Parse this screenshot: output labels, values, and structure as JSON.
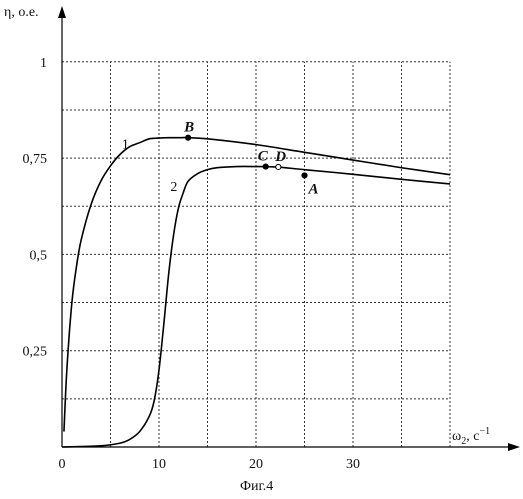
{
  "chart_data": {
    "type": "line",
    "caption": "Фиг.4",
    "ylabel": "η, о.е.",
    "xlabel": "ω",
    "xlabel_sub": "2",
    "xlabel_unit": ", с",
    "xlabel_sup": "−1",
    "xlim": [
      0,
      40
    ],
    "ylim": [
      0,
      1.1
    ],
    "grid": true,
    "x_ticks": [
      {
        "value": 0,
        "label": "0"
      },
      {
        "value": 10,
        "label": "10"
      },
      {
        "value": 20,
        "label": "20"
      },
      {
        "value": 30,
        "label": "30"
      }
    ],
    "y_ticks": [
      {
        "value": 0.25,
        "label": "0,25"
      },
      {
        "value": 0.5,
        "label": "0,5"
      },
      {
        "value": 0.75,
        "label": "0,75"
      },
      {
        "value": 1.0,
        "label": "1"
      }
    ],
    "series": [
      {
        "name": "1",
        "x": [
          0.2,
          0.5,
          1,
          1.5,
          2,
          3,
          4,
          5,
          6,
          7,
          8,
          9,
          10,
          11,
          12,
          13,
          15,
          20,
          25,
          30,
          35,
          40
        ],
        "y": [
          0.04,
          0.2,
          0.37,
          0.47,
          0.54,
          0.63,
          0.69,
          0.73,
          0.76,
          0.78,
          0.79,
          0.8,
          0.802,
          0.803,
          0.803,
          0.803,
          0.8,
          0.785,
          0.765,
          0.745,
          0.725,
          0.707
        ]
      },
      {
        "name": "2",
        "x": [
          0,
          4,
          6,
          7,
          8,
          9,
          9.5,
          10,
          10.5,
          11,
          11.5,
          12,
          12.5,
          13,
          14,
          15,
          16,
          18,
          20,
          22,
          25,
          30,
          35,
          40
        ],
        "y": [
          0.0,
          0.003,
          0.01,
          0.02,
          0.04,
          0.08,
          0.12,
          0.2,
          0.32,
          0.45,
          0.55,
          0.62,
          0.66,
          0.69,
          0.71,
          0.72,
          0.725,
          0.728,
          0.728,
          0.727,
          0.72,
          0.708,
          0.695,
          0.683
        ]
      }
    ],
    "points": [
      {
        "label": "B",
        "x": 13,
        "y": 0.803,
        "filled": true
      },
      {
        "label": "C",
        "x": 21,
        "y": 0.728,
        "filled": true
      },
      {
        "label": "D",
        "x": 22.3,
        "y": 0.727,
        "filled": false
      },
      {
        "label": "A",
        "x": 25,
        "y": 0.705,
        "filled": true
      }
    ]
  }
}
